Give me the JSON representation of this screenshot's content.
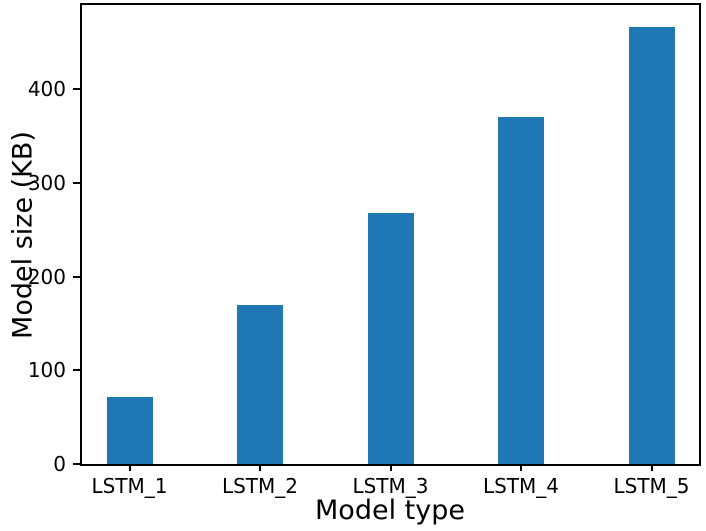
{
  "chart_data": {
    "type": "bar",
    "title": "",
    "xlabel": "Model type",
    "ylabel": "Model size (KB)",
    "categories": [
      "LSTM_1",
      "LSTM_2",
      "LSTM_3",
      "LSTM_4",
      "LSTM_5"
    ],
    "values": [
      72,
      170,
      268,
      370,
      466
    ],
    "yticks": [
      0,
      100,
      200,
      300,
      400
    ],
    "ylim": [
      0,
      490
    ],
    "legend": null,
    "grid": false,
    "colors": {
      "bar": "#1f77b4",
      "axis": "#000000",
      "text": "#000000",
      "background": "#ffffff"
    }
  }
}
